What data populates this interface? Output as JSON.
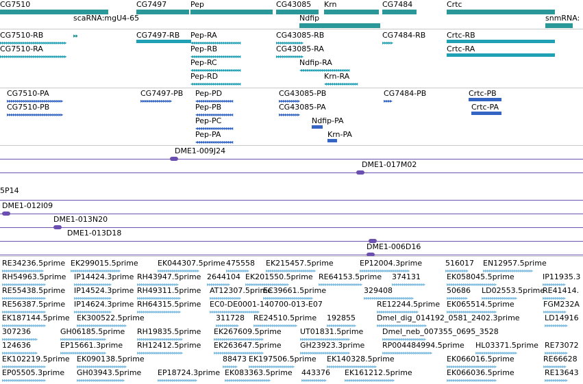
{
  "colors": {
    "gene": "#2a9898",
    "transcript": "#1fa0b4",
    "protein": "#3464c4",
    "clone": "#6a4fb0",
    "est": "#7dbce0",
    "separator": "#c8c8c8"
  },
  "genes": [
    "CG7510",
    "CG7497",
    "Pep",
    "CG43085",
    "Krn",
    "CG7484",
    "Crtc",
    "scaRNA:mgU4-65",
    "Ndfip",
    "snmRNA:"
  ],
  "transcripts": [
    "CG7510-RB",
    "CG7497-RB",
    "Pep-RA",
    "CG43085-RB",
    "CG7484-RB",
    "Crtc-RB",
    "CG7510-RA",
    "Pep-RB",
    "CG43085-RA",
    "Crtc-RA",
    "Pep-RC",
    "Ndfip-RA",
    "Pep-RD",
    "Krn-RA"
  ],
  "proteins": [
    "CG7510-PA",
    "CG7497-PB",
    "Pep-PD",
    "CG43085-PB",
    "CG7484-PB",
    "Crtc-PB",
    "CG7510-PB",
    "Pep-PB",
    "CG43085-PA",
    "Crtc-PA",
    "Pep-PC",
    "Ndfip-PA",
    "Pep-PA",
    "Krn-PA"
  ],
  "clones": [
    "DME1-009J24",
    "DME1-017M02",
    "5P14",
    "DME1-012I09",
    "DME1-013N20",
    "DME1-013D18",
    "DME1-006D16"
  ],
  "ests": [
    [
      "RE34236.5prime",
      "EK299015.5prime",
      "EK044307.5prime",
      "475558",
      "EK215457.5prime",
      "EP12004.3prime",
      "516017",
      "EN12957.5prime"
    ],
    [
      "RH54963.5prime",
      "IP14424.3prime",
      "RH43947.5prime",
      "2644104",
      "EK201550.5prime",
      "RE64153.5prime",
      "374131",
      "EK058045.5prime",
      "IP11935.3"
    ],
    [
      "RE55438.5prime",
      "IP14524.3prime",
      "RH49311.5prime",
      "AT12307.5prime",
      "EC39661.5prime",
      "329408",
      "50686",
      "LD02553.5prime",
      "RE41414."
    ],
    [
      "RE56387.5prime",
      "IP14624.3prime",
      "RH64315.5prime",
      "EC0-DE0001-140700-013-E07",
      "RE12244.5prime",
      "EK065514.5prime",
      "FGM232A"
    ],
    [
      "EK187144.5prime",
      "EK300522.5prime",
      "311728",
      "RE24510.5prime",
      "192855",
      "Dmel_dig_014192_0581_2402.3prime",
      "LD14916"
    ],
    [
      "307236",
      "GH06185.5prime",
      "RH19835.5prime",
      "EK267609.5prime",
      "UT01831.5prime",
      "Dmel_neb_007355_0695_3528"
    ],
    [
      "124636",
      "EP15661.3prime",
      "RH12412.5prime",
      "EK263647.5prime",
      "GH23923.3prime",
      "RP004484994.5prime",
      "HL03371.5prime",
      "RE73072"
    ],
    [
      "EK102219.5prime",
      "EK090138.5prime",
      "88473",
      "EK197506.5prime",
      "EK140328.5prime",
      "EK066016.5prime",
      "RE66628"
    ],
    [
      "EP05505.3prime",
      "GH03943.5prime",
      "EP18724.3prime",
      "EK083363.5prime",
      "443376",
      "EK161212.5prime",
      "EK066036.5prime",
      "RE13643"
    ]
  ]
}
